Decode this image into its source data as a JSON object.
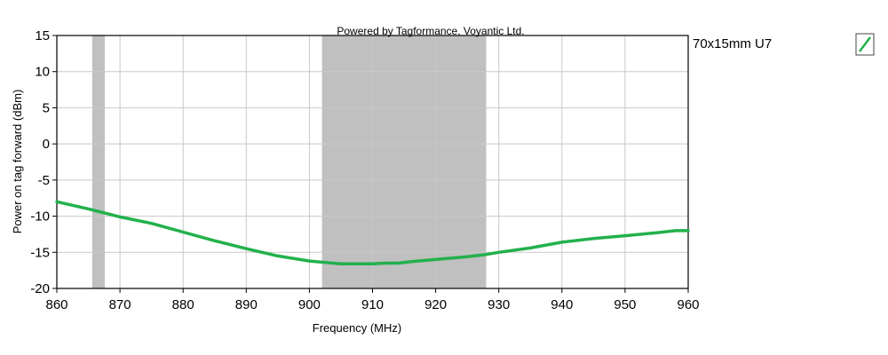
{
  "chart_data": {
    "type": "line",
    "watermark": "Powered by Tagformance, Voyantic Ltd.",
    "xlabel": "Frequency (MHz)",
    "ylabel": "Power on tag forward (dBm)",
    "xlim": [
      860,
      960
    ],
    "ylim": [
      -20,
      15
    ],
    "xticks": [
      860,
      870,
      880,
      890,
      900,
      910,
      920,
      930,
      940,
      950,
      960
    ],
    "yticks": [
      15,
      10,
      5,
      0,
      -5,
      -10,
      -15,
      -20
    ],
    "grid": true,
    "legend_position": "top-right",
    "shaded_bands": [
      {
        "from": 865.6,
        "to": 867.6,
        "color": "#c0c0c0"
      },
      {
        "from": 902,
        "to": 928,
        "color": "#c0c0c0"
      }
    ],
    "series": [
      {
        "name": "70x15mm U7",
        "color": "#22b14c",
        "x": [
          860,
          865,
          870,
          875,
          880,
          885,
          890,
          895,
          900,
          905,
          910,
          912,
          914,
          915,
          916,
          920,
          925,
          928,
          930,
          935,
          940,
          945,
          950,
          955,
          958,
          960
        ],
        "y": [
          -8.0,
          -9.0,
          -10.1,
          -11.0,
          -12.2,
          -13.4,
          -14.5,
          -15.5,
          -16.2,
          -16.6,
          -16.6,
          -16.5,
          -16.5,
          -16.4,
          -16.3,
          -16.0,
          -15.6,
          -15.3,
          -15.0,
          -14.4,
          -13.6,
          -13.1,
          -12.7,
          -12.3,
          -12.0,
          -12.0
        ]
      }
    ]
  }
}
